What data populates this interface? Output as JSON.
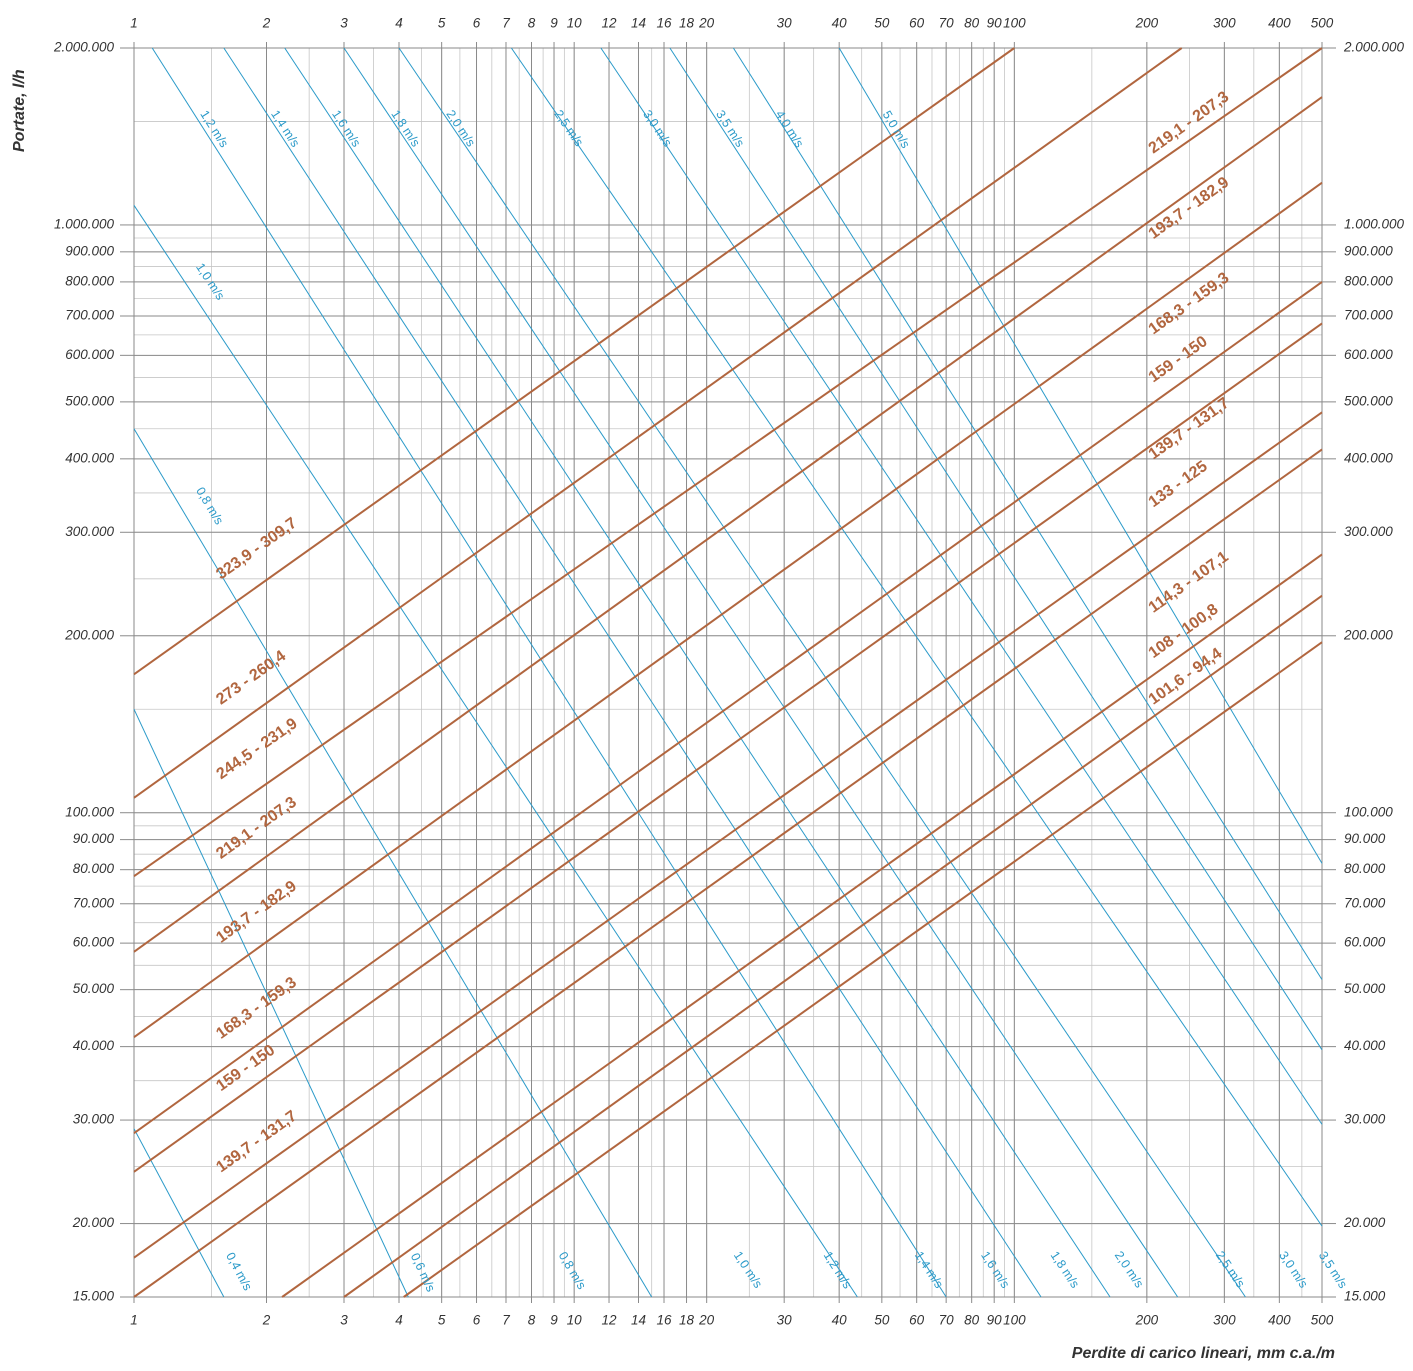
{
  "chart_data": {
    "type": "line",
    "xscale": "log",
    "yscale": "log",
    "xlim": [
      1,
      500
    ],
    "ylim": [
      15000,
      2000000
    ],
    "xlabel": "Perdite di carico lineari, mm c.a./m",
    "ylabel": "Portate, l/h",
    "x_ticks": [
      1,
      2,
      3,
      4,
      5,
      6,
      7,
      8,
      9,
      10,
      12,
      14,
      16,
      18,
      20,
      30,
      40,
      50,
      60,
      70,
      80,
      90,
      100,
      200,
      300,
      400,
      500
    ],
    "x_tick_labels": [
      "1",
      "2",
      "3",
      "4",
      "5",
      "6",
      "7",
      "8",
      "9",
      "10",
      "12",
      "14",
      "16",
      "18",
      "20",
      "30",
      "40",
      "50",
      "60",
      "70",
      "80",
      "90",
      "100",
      "200",
      "300",
      "400",
      "500"
    ],
    "y_ticks": [
      15000,
      20000,
      30000,
      40000,
      50000,
      60000,
      70000,
      80000,
      90000,
      100000,
      200000,
      300000,
      400000,
      500000,
      600000,
      700000,
      800000,
      900000,
      1000000,
      2000000
    ],
    "y_tick_labels": [
      "15.000",
      "20.000",
      "30.000",
      "40.000",
      "50.000",
      "60.000",
      "70.000",
      "80.000",
      "90.000",
      "100.000",
      "200.000",
      "300.000",
      "400.000",
      "500.000",
      "600.000",
      "700.000",
      "800.000",
      "900.000",
      "1.000.000",
      "2.000.000"
    ],
    "pipe_series": [
      {
        "name": "323,9 - 309,7",
        "points": [
          [
            1,
            172000
          ],
          [
            100,
            2000000
          ]
        ],
        "labels": [
          {
            "x": 1.6,
            "y": 245000
          }
        ]
      },
      {
        "name": "273 - 260,4",
        "points": [
          [
            1,
            106000
          ],
          [
            240,
            2000000
          ]
        ],
        "labels": [
          {
            "x": 1.6,
            "y": 150000
          }
        ]
      },
      {
        "name": "244,5 - 231,9",
        "points": [
          [
            1,
            78000
          ],
          [
            500,
            2000000
          ]
        ],
        "labels": [
          {
            "x": 1.6,
            "y": 112000
          }
        ]
      },
      {
        "name": "219,1 - 207,3",
        "points": [
          [
            1,
            58000
          ],
          [
            500,
            1650000
          ]
        ],
        "labels": [
          {
            "x": 1.6,
            "y": 82000
          },
          {
            "x": 210,
            "y": 1300000
          }
        ]
      },
      {
        "name": "193,7 - 182,9",
        "points": [
          [
            1,
            41500
          ],
          [
            500,
            1180000
          ]
        ],
        "labels": [
          {
            "x": 1.6,
            "y": 59000
          },
          {
            "x": 210,
            "y": 930000
          }
        ]
      },
      {
        "name": "168,3 - 159,3",
        "points": [
          [
            1,
            28500
          ],
          [
            500,
            800000
          ]
        ],
        "labels": [
          {
            "x": 1.6,
            "y": 40500
          },
          {
            "x": 210,
            "y": 640000
          }
        ]
      },
      {
        "name": "159 - 150",
        "points": [
          [
            1,
            24500
          ],
          [
            500,
            680000
          ]
        ],
        "labels": [
          {
            "x": 1.6,
            "y": 33000
          },
          {
            "x": 210,
            "y": 530000
          }
        ]
      },
      {
        "name": "139,7 - 131,7",
        "points": [
          [
            1,
            17500
          ],
          [
            500,
            480000
          ]
        ],
        "labels": [
          {
            "x": 1.6,
            "y": 24000
          },
          {
            "x": 210,
            "y": 392000
          }
        ]
      },
      {
        "name": "133 - 125",
        "points": [
          [
            1,
            15000
          ],
          [
            500,
            415000
          ]
        ],
        "labels": [
          {
            "x": 210,
            "y": 325000
          }
        ]
      },
      {
        "name": "114,3 - 107,1",
        "points": [
          [
            2.17,
            15000
          ],
          [
            500,
            275000
          ]
        ],
        "labels": [
          {
            "x": 210,
            "y": 215000
          }
        ]
      },
      {
        "name": "108 - 100,8",
        "points": [
          [
            3.0,
            15000
          ],
          [
            500,
            234000
          ]
        ],
        "labels": [
          {
            "x": 210,
            "y": 180000
          }
        ]
      },
      {
        "name": "101,6 - 94,4",
        "points": [
          [
            4.1,
            15000
          ],
          [
            500,
            195000
          ]
        ],
        "labels": [
          {
            "x": 210,
            "y": 150000
          }
        ]
      }
    ],
    "velocity_series": [
      {
        "name": "1,2 m/s",
        "points": [
          [
            1.1,
            2000000
          ],
          [
            70,
            15000
          ]
        ],
        "labels": [
          {
            "x": 1.38,
            "y": 1530000
          }
        ]
      },
      {
        "name": "1,4 m/s",
        "points": [
          [
            1.6,
            2000000
          ],
          [
            115,
            15000
          ]
        ],
        "labels": [
          {
            "x": 2.0,
            "y": 1530000
          }
        ]
      },
      {
        "name": "1,6 m/s",
        "points": [
          [
            2.2,
            2000000
          ],
          [
            165,
            15000
          ]
        ],
        "labels": [
          {
            "x": 2.75,
            "y": 1530000
          }
        ]
      },
      {
        "name": "1,8 m/s",
        "points": [
          [
            3.0,
            2000000
          ],
          [
            235,
            15000
          ]
        ],
        "labels": [
          {
            "x": 3.75,
            "y": 1530000
          }
        ]
      },
      {
        "name": "2,0 m/s",
        "points": [
          [
            4.0,
            2000000
          ],
          [
            335,
            15000
          ]
        ],
        "labels": [
          {
            "x": 5.0,
            "y": 1530000
          }
        ]
      },
      {
        "name": "2,5 m/s",
        "points": [
          [
            7.2,
            2000000
          ],
          [
            500,
            19800
          ]
        ],
        "labels": [
          {
            "x": 8.8,
            "y": 1530000
          }
        ]
      },
      {
        "name": "3,0 m/s",
        "points": [
          [
            11.5,
            2000000
          ],
          [
            500,
            29500
          ]
        ],
        "labels": [
          {
            "x": 14.0,
            "y": 1530000
          }
        ]
      },
      {
        "name": "3,5 m/s",
        "points": [
          [
            16.5,
            2000000
          ],
          [
            500,
            39500
          ]
        ],
        "labels": [
          {
            "x": 20.5,
            "y": 1530000
          }
        ]
      },
      {
        "name": "4,0 m/s",
        "points": [
          [
            23,
            2000000
          ],
          [
            500,
            52000
          ]
        ],
        "labels": [
          {
            "x": 28,
            "y": 1530000
          }
        ]
      },
      {
        "name": "5,0 m/s",
        "points": [
          [
            40,
            2000000
          ],
          [
            500,
            82000
          ]
        ],
        "labels": [
          {
            "x": 49,
            "y": 1530000
          }
        ]
      },
      {
        "name": "1,0 m/s",
        "points": [
          [
            1,
            1080000
          ],
          [
            44,
            15000
          ]
        ],
        "labels": [
          {
            "x": 1.35,
            "y": 840000
          }
        ]
      },
      {
        "name": "0,8 m/s",
        "points": [
          [
            1,
            450000
          ],
          [
            15,
            15000
          ]
        ],
        "labels": [
          {
            "x": 1.35,
            "y": 350000
          }
        ]
      },
      {
        "name": "0,4 m/s",
        "points": [
          [
            1,
            29000
          ],
          [
            1.6,
            15000
          ]
        ],
        "labels": [
          {
            "x": 1.58,
            "y": 17500
          }
        ]
      },
      {
        "name": "0,6 m/s",
        "points": [
          [
            1,
            150000
          ],
          [
            4.2,
            15000
          ]
        ],
        "labels": [
          {
            "x": 4.15,
            "y": 17500
          }
        ]
      },
      {
        "name": "0,8 m/s",
        "points": [
          [
            1,
            450000
          ],
          [
            15,
            15000
          ]
        ],
        "labels": [
          {
            "x": 9.0,
            "y": 17500
          }
        ]
      },
      {
        "name": "1,0 m/s",
        "points": [
          [
            1,
            1080000
          ],
          [
            44,
            15000
          ]
        ],
        "labels": [
          {
            "x": 22.5,
            "y": 17500
          }
        ]
      },
      {
        "name": "1,2 m/s",
        "points": [
          [
            1.1,
            2000000
          ],
          [
            70,
            15000
          ]
        ],
        "labels": [
          {
            "x": 36,
            "y": 17500
          }
        ]
      },
      {
        "name": "1,4 m/s",
        "points": [
          [
            1.6,
            2000000
          ],
          [
            115,
            15000
          ]
        ],
        "labels": [
          {
            "x": 58,
            "y": 17500
          }
        ]
      },
      {
        "name": "1,6 m/s",
        "points": [
          [
            2.2,
            2000000
          ],
          [
            165,
            15000
          ]
        ],
        "labels": [
          {
            "x": 82,
            "y": 17500
          }
        ]
      },
      {
        "name": "1,8 m/s",
        "points": [
          [
            3.0,
            2000000
          ],
          [
            235,
            15000
          ]
        ],
        "labels": [
          {
            "x": 118,
            "y": 17500
          }
        ]
      },
      {
        "name": "2,0 m/s",
        "points": [
          [
            4.0,
            2000000
          ],
          [
            335,
            15000
          ]
        ],
        "labels": [
          {
            "x": 165,
            "y": 17500
          }
        ]
      },
      {
        "name": "2,5 m/s",
        "points": [
          [
            7.2,
            2000000
          ],
          [
            500,
            19800
          ]
        ],
        "labels": [
          {
            "x": 280,
            "y": 17500
          }
        ]
      },
      {
        "name": "3,0 m/s",
        "points": [
          [
            11.5,
            2000000
          ],
          [
            500,
            29500
          ]
        ],
        "labels": [
          {
            "x": 390,
            "y": 17500
          }
        ]
      },
      {
        "name": "3,5 m/s",
        "points": [
          [
            16.5,
            2000000
          ],
          [
            500,
            39500
          ]
        ],
        "labels": [
          {
            "x": 480,
            "y": 17500
          }
        ]
      }
    ],
    "colors": {
      "pipe": "#b1663f",
      "velocity": "#2b9ac9",
      "grid_major": "#8a8a8a",
      "grid_minor": "#c6c6c6",
      "text": "#333333"
    }
  }
}
